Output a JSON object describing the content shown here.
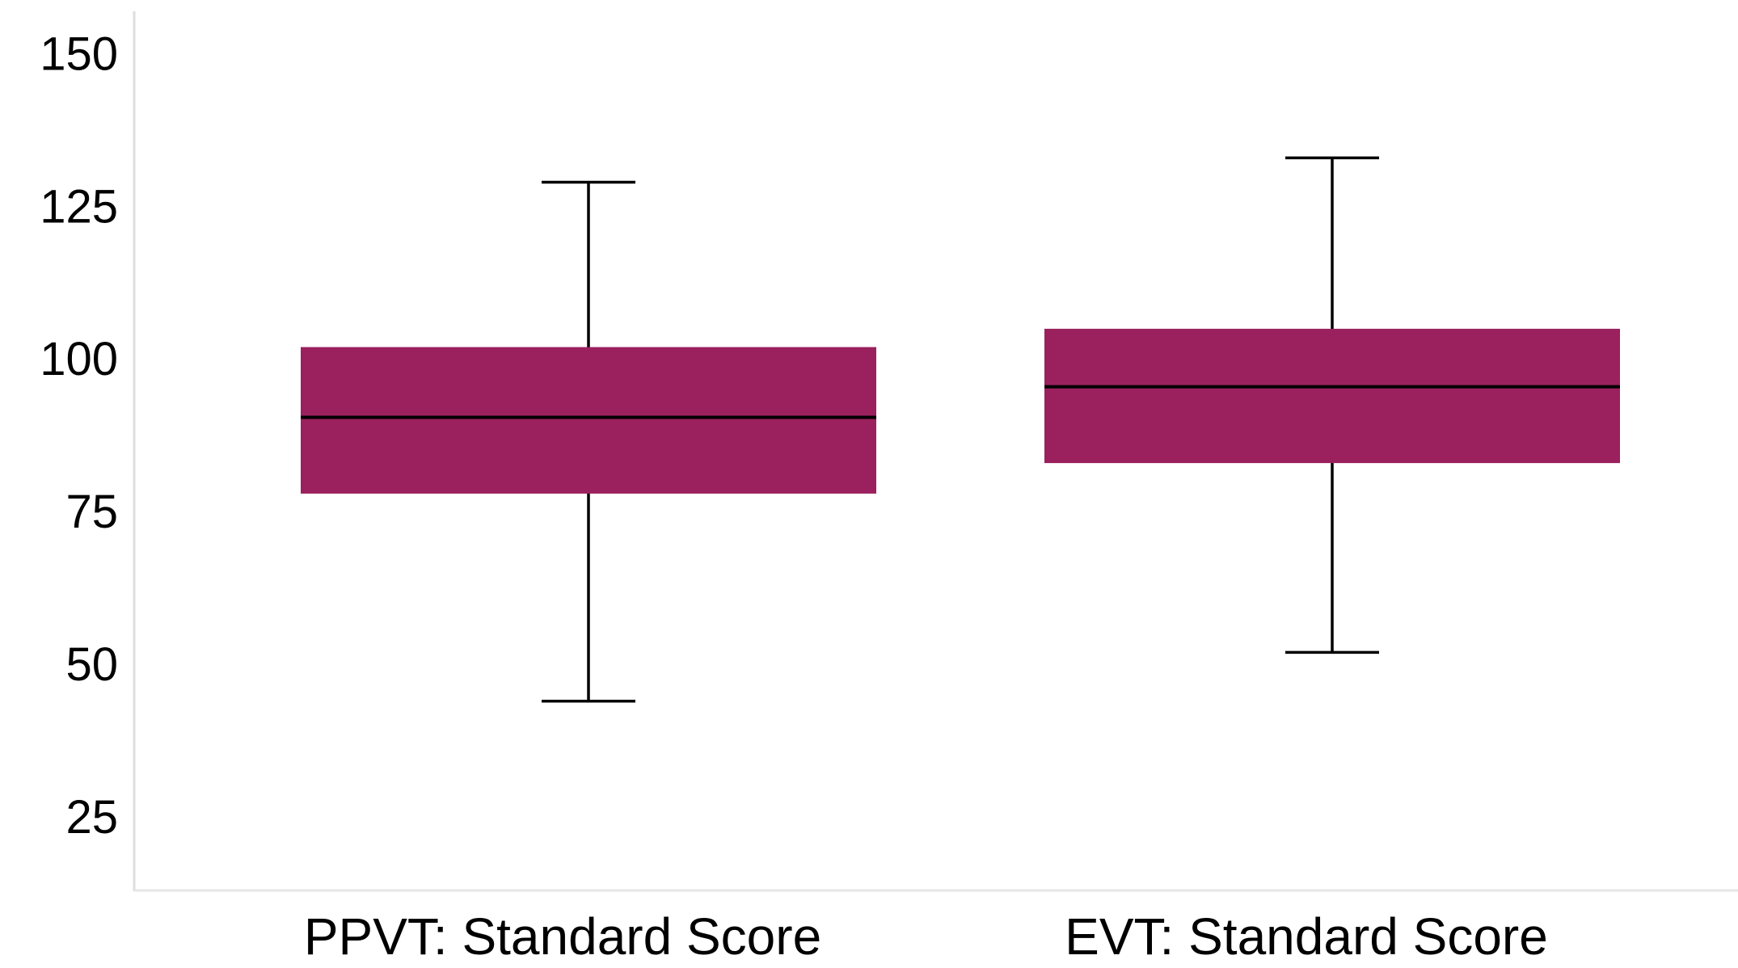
{
  "chart_data": {
    "type": "boxplot",
    "title": "",
    "xlabel": "",
    "ylabel": "",
    "ylim": [
      13,
      157
    ],
    "yticks": [
      "25",
      "50",
      "75",
      "100",
      "125",
      "150"
    ],
    "grid": false,
    "box_color": "#9b205e",
    "median_color": "#000000",
    "whisker_color": "#000000",
    "categories": [
      "PPVT: Standard Score",
      "EVT: Standard Score"
    ],
    "boxes": [
      {
        "category": "PPVT: Standard Score",
        "whisker_low": 44,
        "q1": 78,
        "median": 90.5,
        "q3": 102,
        "whisker_high": 129
      },
      {
        "category": "EVT: Standard Score",
        "whisker_low": 52,
        "q1": 83,
        "median": 95.5,
        "q3": 105,
        "whisker_high": 133
      }
    ]
  }
}
